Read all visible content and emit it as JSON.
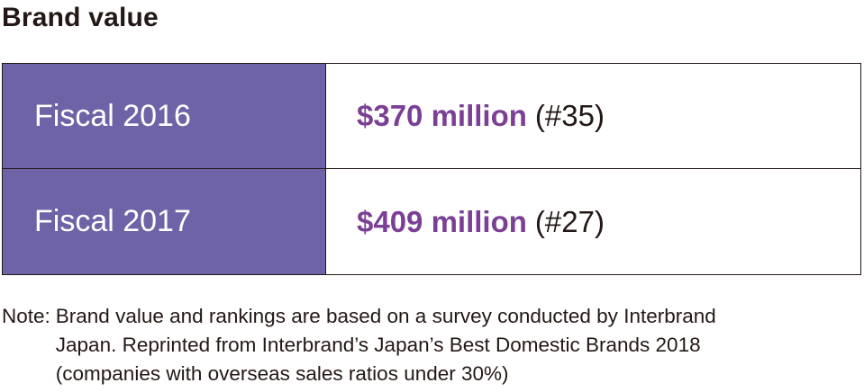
{
  "title": "Brand value",
  "rows": [
    {
      "year": "Fiscal 2016",
      "amount": "$370 million",
      "rank": "(#35)"
    },
    {
      "year": "Fiscal 2017",
      "amount": "$409 million",
      "rank": "(#27)"
    }
  ],
  "note": {
    "label": "Note:",
    "line1": "Brand value and rankings are based on a survey conducted by Interbrand",
    "line2": "Japan. Reprinted from Interbrand’s Japan’s Best Domestic Brands 2018",
    "line3": "(companies with overseas sales ratios under 30%)"
  },
  "colors": {
    "header_fill": "#6f63a7",
    "amount_text": "#7b3f96",
    "text": "#231815"
  }
}
